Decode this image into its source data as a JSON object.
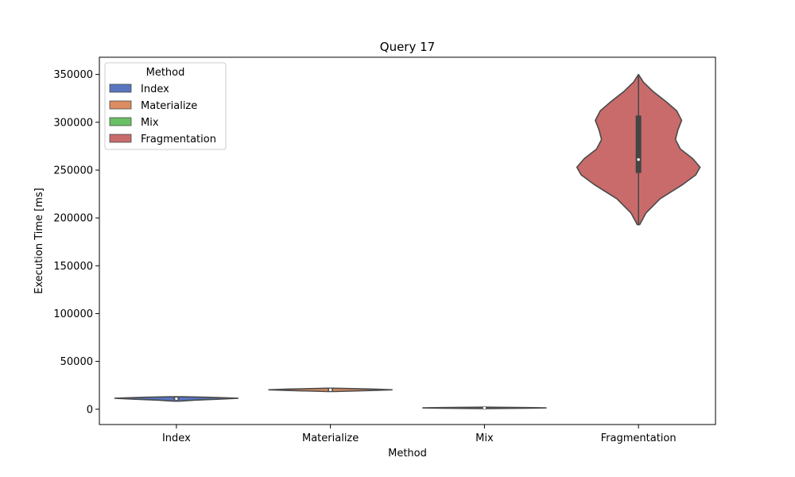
{
  "chart_data": {
    "type": "violin",
    "title": "Query 17",
    "xlabel": "Method",
    "ylabel": "Execution Time [ms]",
    "ylim": [
      -16000,
      368000
    ],
    "yticks": [
      0,
      50000,
      100000,
      150000,
      200000,
      250000,
      300000,
      350000
    ],
    "categories": [
      "Index",
      "Materialize",
      "Mix",
      "Fragmentation"
    ],
    "legend": {
      "title": "Method",
      "entries": [
        "Index",
        "Materialize",
        "Mix",
        "Fragmentation"
      ],
      "placement": "top-left"
    },
    "colors": [
      "#5875bf",
      "#dc8c61",
      "#6ac064",
      "#c96b6b"
    ],
    "edge_color": "#4a4a4a",
    "grid": false,
    "series": [
      {
        "category": "Index",
        "min": 8500,
        "q1": 10000,
        "median": 11000,
        "q3": 12000,
        "max": 13000,
        "density": [
          [
            8500,
            0.05
          ],
          [
            9500,
            0.3
          ],
          [
            10500,
            0.7
          ],
          [
            11500,
            1.0
          ],
          [
            12500,
            0.5
          ],
          [
            13000,
            0.1
          ]
        ]
      },
      {
        "category": "Materialize",
        "min": 18500,
        "q1": 19500,
        "median": 20300,
        "q3": 21000,
        "max": 22000,
        "density": [
          [
            18500,
            0.05
          ],
          [
            19500,
            0.6
          ],
          [
            20300,
            1.0
          ],
          [
            21000,
            0.7
          ],
          [
            22000,
            0.05
          ]
        ]
      },
      {
        "category": "Mix",
        "min": 700,
        "q1": 1100,
        "median": 1400,
        "q3": 1700,
        "max": 2100,
        "density": [
          [
            700,
            0.05
          ],
          [
            1100,
            0.7
          ],
          [
            1400,
            1.0
          ],
          [
            1700,
            0.7
          ],
          [
            2100,
            0.05
          ]
        ]
      },
      {
        "category": "Fragmentation",
        "min": 193000,
        "q1": 247000,
        "median": 261000,
        "q3": 307000,
        "max": 350000,
        "density": [
          [
            193000,
            0.02
          ],
          [
            205000,
            0.12
          ],
          [
            220000,
            0.35
          ],
          [
            235000,
            0.72
          ],
          [
            245000,
            0.93
          ],
          [
            253000,
            1.0
          ],
          [
            262000,
            0.88
          ],
          [
            272000,
            0.68
          ],
          [
            282000,
            0.6
          ],
          [
            292000,
            0.64
          ],
          [
            302000,
            0.7
          ],
          [
            312000,
            0.62
          ],
          [
            322000,
            0.44
          ],
          [
            332000,
            0.24
          ],
          [
            342000,
            0.08
          ],
          [
            350000,
            0.0
          ]
        ]
      }
    ]
  }
}
